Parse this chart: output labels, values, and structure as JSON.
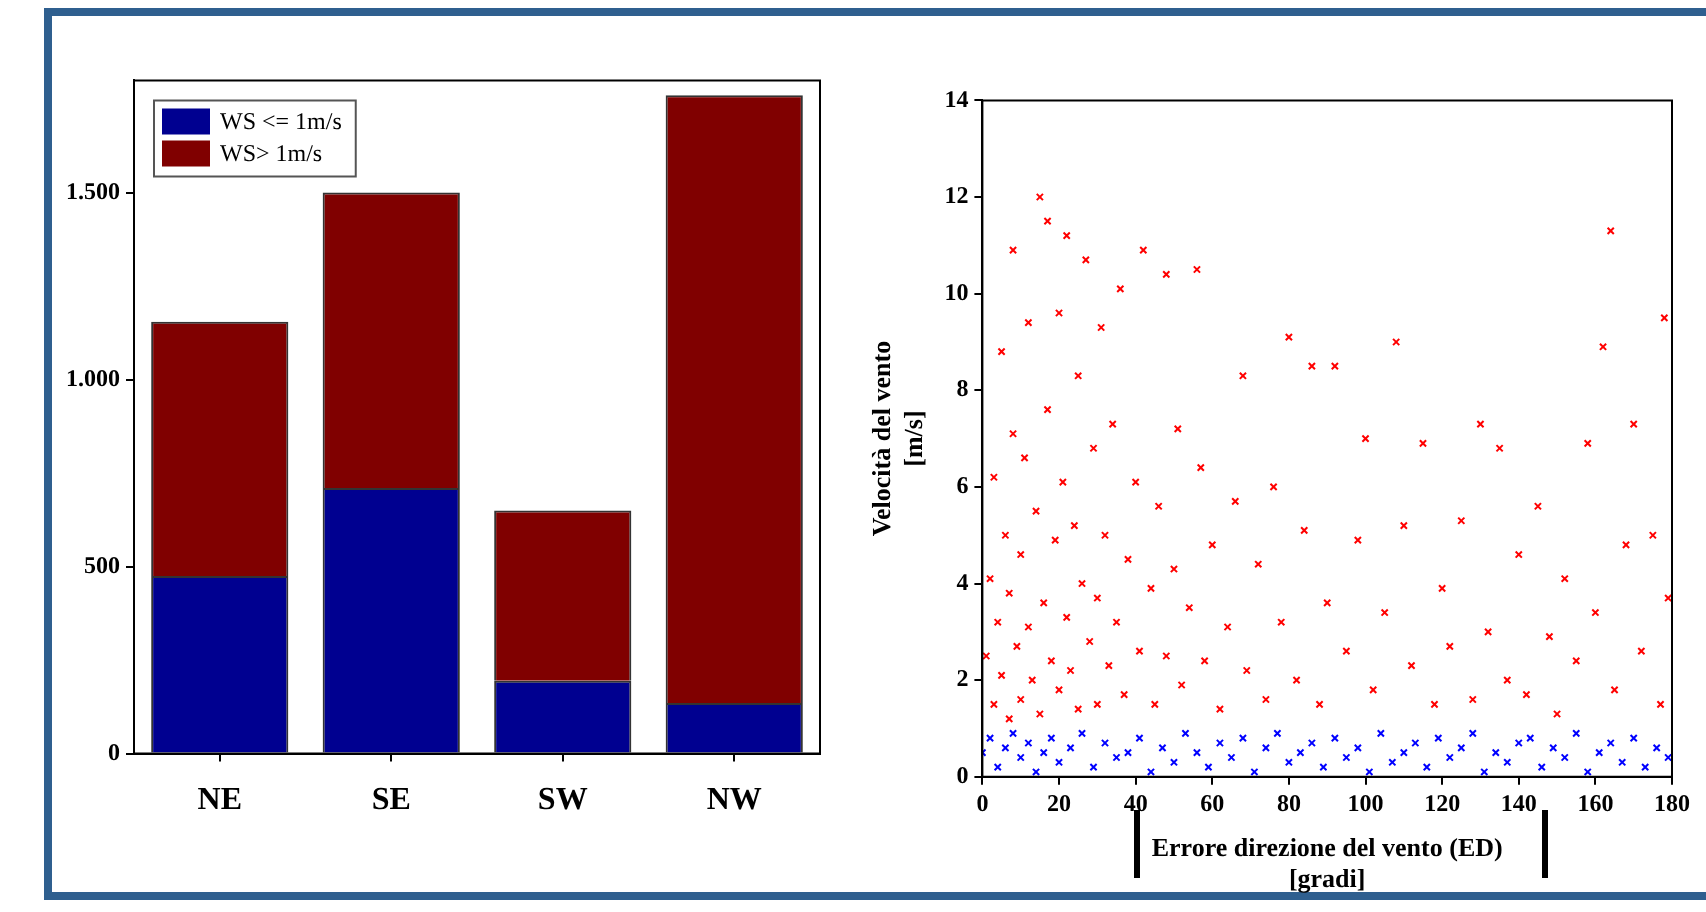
{
  "chart_data": [
    {
      "type": "bar",
      "stacked": true,
      "categories": [
        "NE",
        "SE",
        "SW",
        "NW"
      ],
      "ylim": [
        0,
        1800
      ],
      "yticks": [
        0,
        500,
        {
          "value": 1000,
          "label": "1.000"
        },
        {
          "value": 1500,
          "label": "1.500"
        }
      ],
      "legend": "top left",
      "series": [
        {
          "name": "WS <= 1m/s",
          "color": "#000090",
          "values": [
            475,
            710,
            195,
            135
          ]
        },
        {
          "name": "WS> 1m/s",
          "color": "#800000",
          "values": [
            680,
            790,
            455,
            1625
          ]
        }
      ]
    },
    {
      "type": "scatter",
      "xlabel": "Errore direzione del vento (ED)\n[gradi]",
      "ylabel": "Velocità del vento\n[m/s]",
      "xlim": [
        0,
        180
      ],
      "xticks": [
        0,
        20,
        40,
        60,
        80,
        100,
        120,
        140,
        160,
        180
      ],
      "ylim": [
        0,
        14
      ],
      "yticks": [
        0,
        2,
        4,
        6,
        8,
        10,
        12,
        14
      ],
      "marker": "cross",
      "series": [
        {
          "color": "#ff0000",
          "x": [
            1,
            2,
            3,
            3,
            4,
            5,
            5,
            6,
            7,
            7,
            8,
            8,
            9,
            10,
            10,
            11,
            12,
            12,
            13,
            14,
            15,
            15,
            16,
            17,
            17,
            18,
            19,
            20,
            20,
            21,
            22,
            22,
            23,
            24,
            25,
            25,
            26,
            27,
            28,
            29,
            30,
            30,
            31,
            32,
            33,
            34,
            35,
            36,
            37,
            38,
            40,
            41,
            42,
            44,
            45,
            46,
            48,
            48,
            50,
            51,
            52,
            54,
            56,
            57,
            58,
            60,
            62,
            64,
            66,
            68,
            69,
            72,
            74,
            76,
            78,
            80,
            82,
            84,
            86,
            88,
            90,
            92,
            95,
            98,
            100,
            102,
            105,
            108,
            110,
            112,
            115,
            118,
            120,
            122,
            125,
            128,
            130,
            132,
            135,
            137,
            140,
            142,
            145,
            148,
            150,
            152,
            155,
            158,
            160,
            162,
            164,
            165,
            168,
            170,
            172,
            175,
            177,
            178,
            179
          ],
          "values": [
            2.5,
            4.1,
            1.5,
            6.2,
            3.2,
            8.8,
            2.1,
            5.0,
            1.2,
            3.8,
            10.9,
            7.1,
            2.7,
            4.6,
            1.6,
            6.6,
            9.4,
            3.1,
            2.0,
            5.5,
            12.0,
            1.3,
            3.6,
            7.6,
            11.5,
            2.4,
            4.9,
            9.6,
            1.8,
            6.1,
            11.2,
            3.3,
            2.2,
            5.2,
            8.3,
            1.4,
            4.0,
            10.7,
            2.8,
            6.8,
            3.7,
            1.5,
            9.3,
            5.0,
            2.3,
            7.3,
            3.2,
            10.1,
            1.7,
            4.5,
            6.1,
            2.6,
            10.9,
            3.9,
            1.5,
            5.6,
            10.4,
            2.5,
            4.3,
            7.2,
            1.9,
            3.5,
            10.5,
            6.4,
            2.4,
            4.8,
            1.4,
            3.1,
            5.7,
            8.3,
            2.2,
            4.4,
            1.6,
            6.0,
            3.2,
            9.1,
            2.0,
            5.1,
            8.5,
            1.5,
            3.6,
            8.5,
            2.6,
            4.9,
            7.0,
            1.8,
            3.4,
            9.0,
            5.2,
            2.3,
            6.9,
            1.5,
            3.9,
            2.7,
            5.3,
            1.6,
            7.3,
            3.0,
            6.8,
            2.0,
            4.6,
            1.7,
            5.6,
            2.9,
            1.3,
            4.1,
            2.4,
            6.9,
            3.4,
            8.9,
            11.3,
            1.8,
            4.8,
            7.3,
            2.6,
            5.0,
            1.5,
            9.5,
            3.7
          ]
        },
        {
          "color": "#0000ff",
          "x": [
            0,
            2,
            4,
            6,
            8,
            10,
            12,
            14,
            16,
            18,
            20,
            23,
            26,
            29,
            32,
            35,
            38,
            41,
            44,
            47,
            50,
            53,
            56,
            59,
            62,
            65,
            68,
            71,
            74,
            77,
            80,
            83,
            86,
            89,
            92,
            95,
            98,
            101,
            104,
            107,
            110,
            113,
            116,
            119,
            122,
            125,
            128,
            131,
            134,
            137,
            140,
            143,
            146,
            149,
            152,
            155,
            158,
            161,
            164,
            167,
            170,
            173,
            176,
            179
          ],
          "values": [
            0.5,
            0.8,
            0.2,
            0.6,
            0.9,
            0.4,
            0.7,
            0.1,
            0.5,
            0.8,
            0.3,
            0.6,
            0.9,
            0.2,
            0.7,
            0.4,
            0.5,
            0.8,
            0.1,
            0.6,
            0.3,
            0.9,
            0.5,
            0.2,
            0.7,
            0.4,
            0.8,
            0.1,
            0.6,
            0.9,
            0.3,
            0.5,
            0.7,
            0.2,
            0.8,
            0.4,
            0.6,
            0.1,
            0.9,
            0.3,
            0.5,
            0.7,
            0.2,
            0.8,
            0.4,
            0.6,
            0.9,
            0.1,
            0.5,
            0.3,
            0.7,
            0.8,
            0.2,
            0.6,
            0.4,
            0.9,
            0.1,
            0.5,
            0.7,
            0.3,
            0.8,
            0.2,
            0.6,
            0.4
          ]
        }
      ]
    }
  ]
}
